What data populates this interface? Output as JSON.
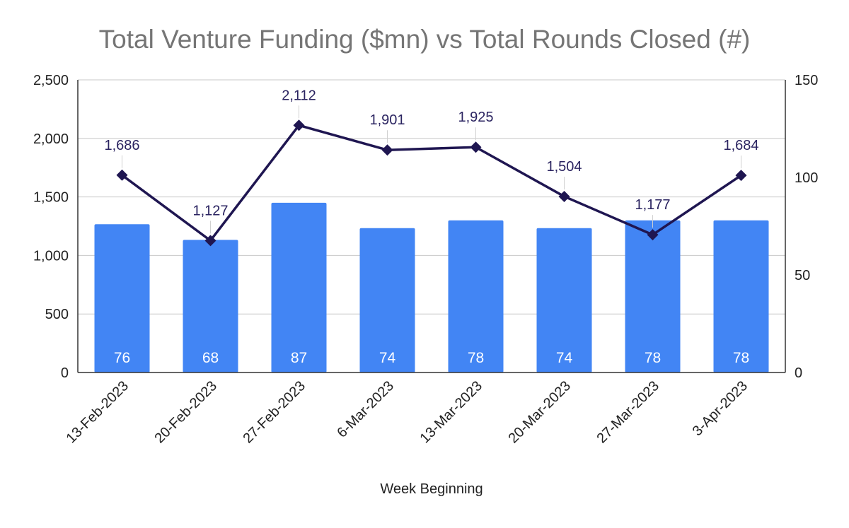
{
  "chart_data": {
    "type": "bar+line",
    "title": "Total Venture Funding ($mn) vs Total Rounds Closed (#)",
    "xlabel": "Week Beginning",
    "categories": [
      "13-Feb-2023",
      "20-Feb-2023",
      "27-Feb-2023",
      "6-Mar-2023",
      "13-Mar-2023",
      "20-Mar-2023",
      "27-Mar-2023",
      "3-Apr-2023"
    ],
    "series": [
      {
        "kind": "bar",
        "axis": "right",
        "values": [
          76,
          68,
          87,
          74,
          78,
          74,
          78,
          78
        ],
        "labels": [
          "76",
          "68",
          "87",
          "74",
          "78",
          "74",
          "78",
          "78"
        ],
        "color": "#4285f4"
      },
      {
        "kind": "line",
        "axis": "left",
        "values": [
          1686,
          1127,
          2112,
          1901,
          1925,
          1504,
          1177,
          1684
        ],
        "labels": [
          "1,686",
          "1,127",
          "2,112",
          "1,901",
          "1,925",
          "1,504",
          "1,177",
          "1,684"
        ],
        "color": "#1f1651"
      }
    ],
    "y_left": {
      "ylim": [
        0,
        2500
      ],
      "ticks": [
        0,
        500,
        1000,
        1500,
        2000,
        2500
      ],
      "tick_labels": [
        "0",
        "500",
        "1,000",
        "1,500",
        "2,000",
        "2,500"
      ]
    },
    "y_right": {
      "ylim": [
        0,
        150
      ],
      "ticks": [
        0,
        50,
        100,
        150
      ],
      "tick_labels": [
        "0",
        "50",
        "100",
        "150"
      ]
    },
    "grid": true,
    "legend": "none"
  }
}
